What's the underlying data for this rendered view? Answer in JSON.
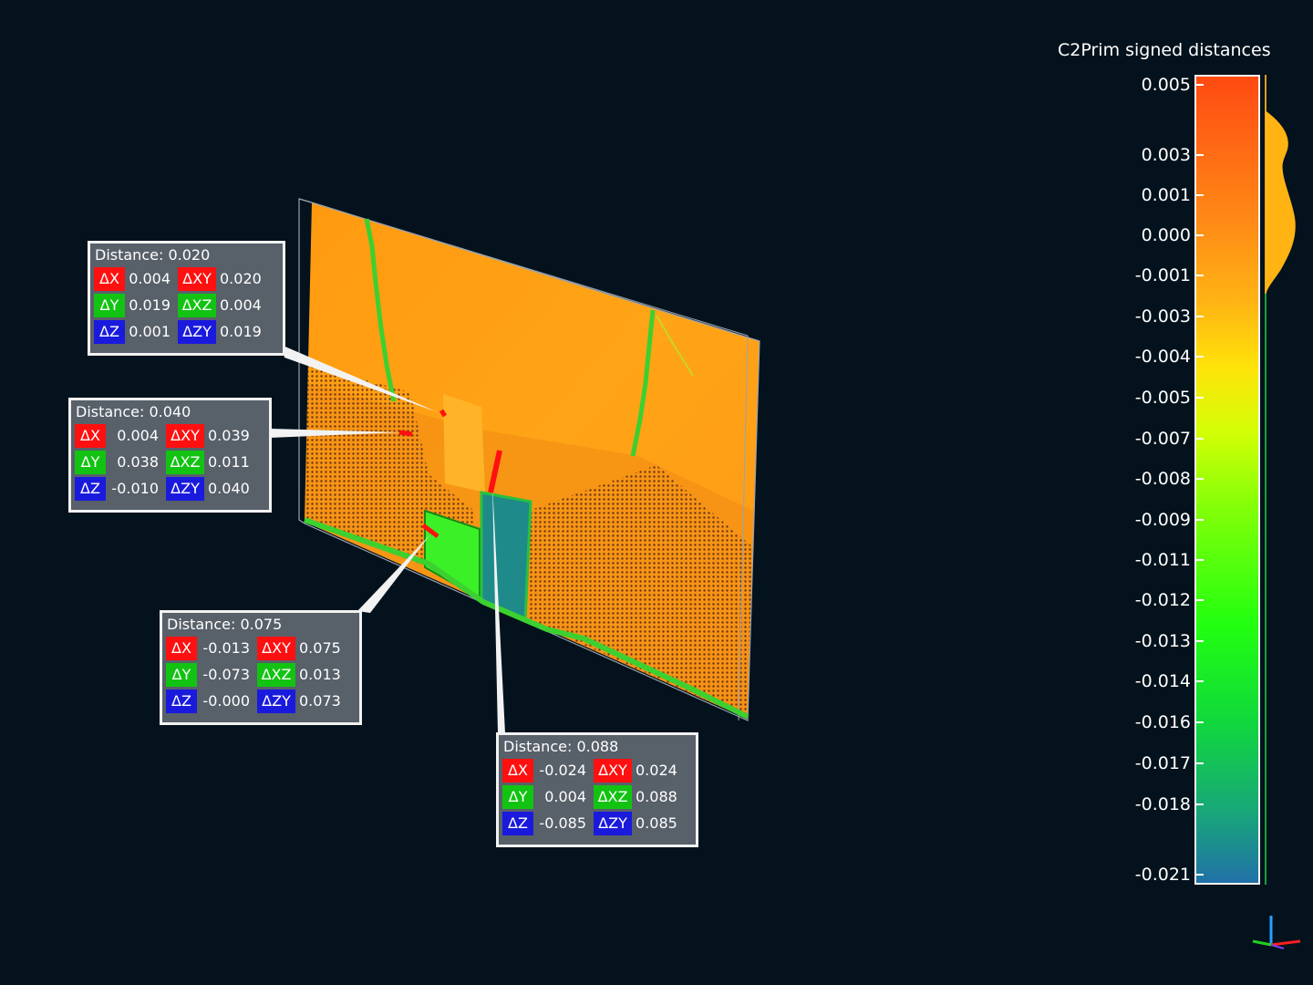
{
  "scalar_field": {
    "title": "C2Prim signed distances",
    "ticks": [
      {
        "value": "0.005",
        "pos": 0.012
      },
      {
        "value": "0.003",
        "pos": 0.099
      },
      {
        "value": "0.001",
        "pos": 0.149
      },
      {
        "value": "0.000",
        "pos": 0.198
      },
      {
        "value": "-0.001",
        "pos": 0.248
      },
      {
        "value": "-0.003",
        "pos": 0.298
      },
      {
        "value": "-0.004",
        "pos": 0.348
      },
      {
        "value": "-0.005",
        "pos": 0.399
      },
      {
        "value": "-0.007",
        "pos": 0.449
      },
      {
        "value": "-0.008",
        "pos": 0.499
      },
      {
        "value": "-0.009",
        "pos": 0.549
      },
      {
        "value": "-0.011",
        "pos": 0.599
      },
      {
        "value": "-0.012",
        "pos": 0.649
      },
      {
        "value": "-0.013",
        "pos": 0.699
      },
      {
        "value": "-0.014",
        "pos": 0.749
      },
      {
        "value": "-0.016",
        "pos": 0.8
      },
      {
        "value": "-0.017",
        "pos": 0.85
      },
      {
        "value": "-0.018",
        "pos": 0.901
      },
      {
        "value": "-0.021",
        "pos": 0.988
      }
    ]
  },
  "labels": [
    {
      "title": "Distance: 0.020",
      "rows": [
        {
          "t1": "ΔX",
          "c1": "r",
          "v1": "0.004",
          "t2": "ΔXY",
          "c2": "r",
          "v2": "0.020"
        },
        {
          "t1": "ΔY",
          "c1": "g",
          "v1": "0.019",
          "t2": "ΔXZ",
          "c2": "g",
          "v2": "0.004"
        },
        {
          "t1": "ΔZ",
          "c1": "b",
          "v1": "0.001",
          "t2": "ΔZY",
          "c2": "b",
          "v2": "0.019"
        }
      ]
    },
    {
      "title": "Distance: 0.040",
      "rows": [
        {
          "t1": "ΔX",
          "c1": "r",
          "v1": "0.004",
          "t2": "ΔXY",
          "c2": "r",
          "v2": "0.039"
        },
        {
          "t1": "ΔY",
          "c1": "g",
          "v1": "0.038",
          "t2": "ΔXZ",
          "c2": "g",
          "v2": "0.011"
        },
        {
          "t1": "ΔZ",
          "c1": "b",
          "v1": "-0.010",
          "t2": "ΔZY",
          "c2": "b",
          "v2": "0.040"
        }
      ]
    },
    {
      "title": "Distance: 0.075",
      "rows": [
        {
          "t1": "ΔX",
          "c1": "r",
          "v1": "-0.013",
          "t2": "ΔXY",
          "c2": "r",
          "v2": "0.075"
        },
        {
          "t1": "ΔY",
          "c1": "g",
          "v1": "-0.073",
          "t2": "ΔXZ",
          "c2": "g",
          "v2": "0.013"
        },
        {
          "t1": "ΔZ",
          "c1": "b",
          "v1": "-0.000",
          "t2": "ΔZY",
          "c2": "b",
          "v2": "0.073"
        }
      ]
    },
    {
      "title": "Distance: 0.088",
      "rows": [
        {
          "t1": "ΔX",
          "c1": "r",
          "v1": "-0.024",
          "t2": "ΔXY",
          "c2": "r",
          "v2": "0.024"
        },
        {
          "t1": "ΔY",
          "c1": "g",
          "v1": "0.004",
          "t2": "ΔXZ",
          "c2": "g",
          "v2": "0.088"
        },
        {
          "t1": "ΔZ",
          "c1": "b",
          "v1": "-0.085",
          "t2": "ΔZY",
          "c2": "b",
          "v2": "0.085"
        }
      ]
    }
  ],
  "colors": {
    "background": "#03121c",
    "tag_red": "#ff1010",
    "tag_green": "#12c312",
    "tag_blue": "#1a1add",
    "label_bg": "#58606a"
  }
}
